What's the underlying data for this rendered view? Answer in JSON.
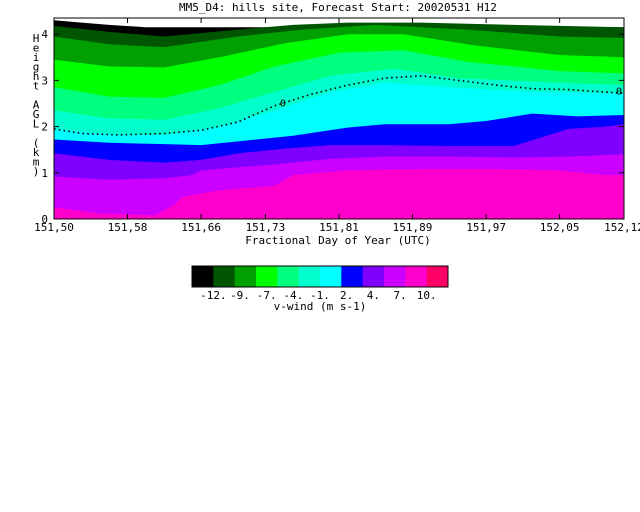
{
  "chart_data": {
    "type": "heatmap",
    "title": "MM5_D4: hills site,  Forecast Start: 20020531 H12",
    "xlabel": "Fractional Day of Year (UTC)",
    "ylabel": "Height AGL (km)",
    "x_tick_labels": [
      "151,50",
      "151,58",
      "151,66",
      "151,73",
      "151,81",
      "151,89",
      "151,97",
      "152,05",
      "152,12"
    ],
    "x_ticks": [
      151.5,
      151.58,
      151.66,
      151.73,
      151.81,
      151.89,
      151.97,
      152.05,
      152.12
    ],
    "xlim": [
      151.5,
      152.12
    ],
    "y_tick_labels": [
      "0",
      "1",
      "2",
      "3",
      "4"
    ],
    "y_ticks": [
      0,
      1,
      2,
      3,
      4
    ],
    "ylim": [
      0,
      4.35
    ],
    "contour_label": "0",
    "colorbar": {
      "label": "v-wind (m s-1)",
      "tick_labels": [
        "-12.",
        "-9.",
        "-7.",
        "-4.",
        "-1.",
        "2.",
        "4.",
        "7.",
        "10."
      ],
      "colors": [
        "#000000",
        "#005500",
        "#00a000",
        "#00ff00",
        "#00ff7f",
        "#00ffcc",
        "#00ffff",
        "#0000ff",
        "#8000ff",
        "#cc00ff",
        "#ff00cc",
        "#ff0066"
      ]
    },
    "levels": [
      -12,
      -9,
      -7,
      -4,
      -1,
      2,
      4,
      7,
      10
    ],
    "bands_top_down": [
      {
        "color": "#000000",
        "boundary": [
          [
            151.5,
            4.3
          ],
          [
            151.53,
            4.25
          ],
          [
            151.56,
            4.2
          ],
          [
            151.6,
            4.15
          ],
          [
            152.12,
            4.15
          ]
        ]
      },
      {
        "color": "#005500",
        "boundary": [
          [
            151.5,
            4.18
          ],
          [
            151.56,
            4.05
          ],
          [
            151.62,
            3.95
          ],
          [
            151.7,
            4.1
          ],
          [
            151.76,
            4.2
          ],
          [
            151.82,
            4.25
          ],
          [
            151.9,
            4.25
          ],
          [
            152.0,
            4.2
          ],
          [
            152.12,
            4.15
          ]
        ]
      },
      {
        "color": "#00a000",
        "boundary": [
          [
            151.5,
            3.95
          ],
          [
            151.56,
            3.78
          ],
          [
            151.62,
            3.72
          ],
          [
            151.7,
            3.95
          ],
          [
            151.77,
            4.1
          ],
          [
            151.85,
            4.2
          ],
          [
            151.95,
            4.1
          ],
          [
            152.05,
            3.95
          ],
          [
            152.12,
            3.92
          ]
        ]
      },
      {
        "color": "#00ff00",
        "boundary": [
          [
            151.5,
            3.45
          ],
          [
            151.56,
            3.3
          ],
          [
            151.62,
            3.28
          ],
          [
            151.68,
            3.5
          ],
          [
            151.75,
            3.8
          ],
          [
            151.82,
            4.0
          ],
          [
            151.88,
            4.0
          ],
          [
            151.96,
            3.75
          ],
          [
            152.05,
            3.55
          ],
          [
            152.12,
            3.5
          ]
        ]
      },
      {
        "color": "#00ff7f",
        "boundary": [
          [
            151.5,
            2.85
          ],
          [
            151.56,
            2.65
          ],
          [
            151.62,
            2.62
          ],
          [
            151.68,
            2.9
          ],
          [
            151.74,
            3.3
          ],
          [
            151.81,
            3.6
          ],
          [
            151.88,
            3.65
          ],
          [
            151.95,
            3.4
          ],
          [
            152.05,
            3.2
          ],
          [
            152.12,
            3.15
          ]
        ]
      },
      {
        "color": "#00ffcc",
        "boundary": [
          [
            151.5,
            2.35
          ],
          [
            151.56,
            2.18
          ],
          [
            151.62,
            2.15
          ],
          [
            151.68,
            2.4
          ],
          [
            151.74,
            2.75
          ],
          [
            151.8,
            3.1
          ],
          [
            151.87,
            3.25
          ],
          [
            151.94,
            3.05
          ],
          [
            152.05,
            2.95
          ],
          [
            152.12,
            2.9
          ]
        ]
      },
      {
        "color": "#00ffff",
        "boundary": [
          [
            151.5,
            1.95
          ],
          [
            151.56,
            1.83
          ],
          [
            151.62,
            1.82
          ],
          [
            151.68,
            2.0
          ],
          [
            151.74,
            2.35
          ],
          [
            151.8,
            2.75
          ],
          [
            151.86,
            2.95
          ],
          [
            151.93,
            2.85
          ],
          [
            152.02,
            2.75
          ],
          [
            152.12,
            2.72
          ]
        ]
      },
      {
        "color": "#0000ff",
        "boundary": [
          [
            151.5,
            1.72
          ],
          [
            151.56,
            1.65
          ],
          [
            151.62,
            1.62
          ],
          [
            151.66,
            1.6
          ],
          [
            151.7,
            1.68
          ],
          [
            151.76,
            1.8
          ],
          [
            151.82,
            1.98
          ],
          [
            151.86,
            2.05
          ],
          [
            151.93,
            2.05
          ],
          [
            151.97,
            2.12
          ],
          [
            152.02,
            2.28
          ],
          [
            152.07,
            2.22
          ],
          [
            152.12,
            2.25
          ]
        ]
      },
      {
        "color": "#8000ff",
        "boundary": [
          [
            151.5,
            1.42
          ],
          [
            151.56,
            1.28
          ],
          [
            151.62,
            1.22
          ],
          [
            151.66,
            1.28
          ],
          [
            151.7,
            1.42
          ],
          [
            151.75,
            1.52
          ],
          [
            151.8,
            1.6
          ],
          [
            151.86,
            1.6
          ],
          [
            151.93,
            1.58
          ],
          [
            152.0,
            1.58
          ],
          [
            152.06,
            1.95
          ],
          [
            152.1,
            2.0
          ],
          [
            152.12,
            2.05
          ]
        ]
      },
      {
        "color": "#cc00ff",
        "boundary": [
          [
            151.5,
            0.92
          ],
          [
            151.56,
            0.85
          ],
          [
            151.62,
            0.88
          ],
          [
            151.65,
            0.95
          ],
          [
            151.66,
            1.05
          ],
          [
            151.7,
            1.12
          ],
          [
            151.74,
            1.18
          ],
          [
            151.8,
            1.3
          ],
          [
            151.86,
            1.35
          ],
          [
            151.93,
            1.35
          ],
          [
            152.0,
            1.33
          ],
          [
            152.06,
            1.35
          ],
          [
            152.12,
            1.4
          ]
        ]
      },
      {
        "color": "#ff00cc",
        "boundary": [
          [
            151.5,
            0.25
          ],
          [
            151.55,
            0.12
          ],
          [
            151.61,
            0.08
          ],
          [
            151.63,
            0.3
          ],
          [
            151.64,
            0.48
          ],
          [
            151.68,
            0.62
          ],
          [
            151.74,
            0.72
          ],
          [
            151.76,
            0.95
          ],
          [
            151.82,
            1.05
          ],
          [
            151.9,
            1.08
          ],
          [
            151.98,
            1.08
          ],
          [
            152.05,
            1.05
          ],
          [
            152.1,
            0.95
          ],
          [
            152.12,
            0.95
          ]
        ]
      },
      {
        "color": "#ff0066",
        "boundary": [
          [
            151.5,
            0.0
          ],
          [
            152.12,
            0.0
          ]
        ]
      }
    ],
    "zero_contour": [
      [
        151.5,
        1.95
      ],
      [
        151.53,
        1.85
      ],
      [
        151.57,
        1.82
      ],
      [
        151.62,
        1.85
      ],
      [
        151.66,
        1.92
      ],
      [
        151.7,
        2.1
      ],
      [
        151.74,
        2.45
      ],
      [
        151.78,
        2.7
      ],
      [
        151.82,
        2.9
      ],
      [
        151.86,
        3.05
      ],
      [
        151.9,
        3.1
      ],
      [
        151.94,
        3.0
      ],
      [
        151.98,
        2.9
      ],
      [
        152.02,
        2.82
      ],
      [
        152.06,
        2.8
      ],
      [
        152.12,
        2.72
      ]
    ],
    "zero_label_points": [
      [
        151.75,
        2.52
      ],
      [
        152.12,
        2.78
      ]
    ]
  }
}
